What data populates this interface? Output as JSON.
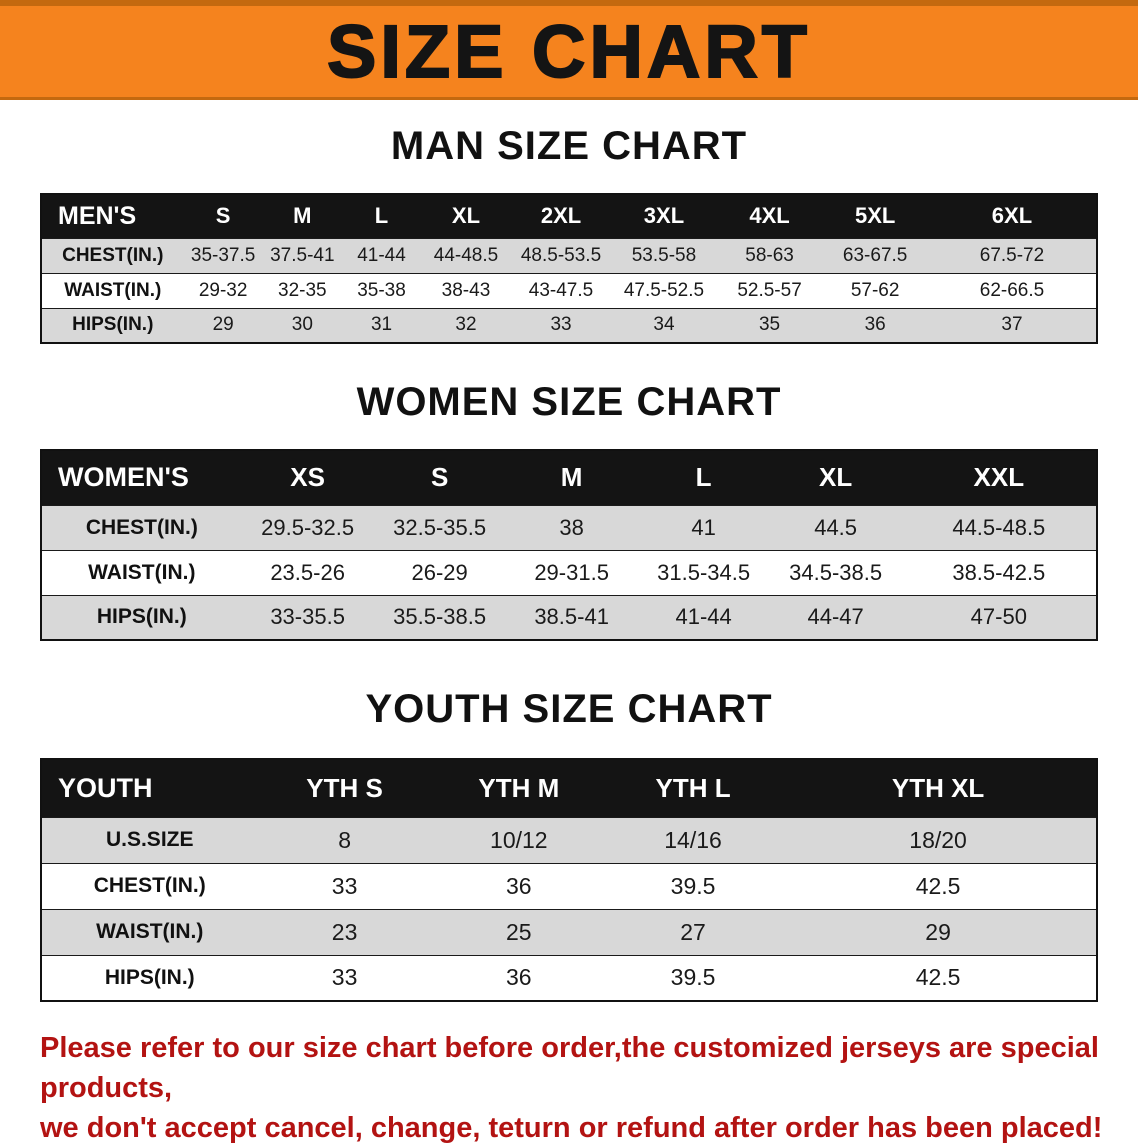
{
  "title": "SIZE CHART",
  "colors": {
    "banner_bg": "#f5831e",
    "banner_edge": "#c4690f",
    "table_header_bg": "#141414",
    "table_header_text": "#ffffff",
    "row_shade": "#d8d8d8",
    "row_plain": "#ffffff",
    "disclaimer_red": "#b31312"
  },
  "men": {
    "heading": "MAN SIZE CHART",
    "header": [
      "MEN'S",
      "S",
      "M",
      "L",
      "XL",
      "2XL",
      "3XL",
      "4XL",
      "5XL",
      "6XL"
    ],
    "rows": [
      {
        "label": "CHEST(IN.)",
        "v": [
          "35-37.5",
          "37.5-41",
          "41-44",
          "44-48.5",
          "48.5-53.5",
          "53.5-58",
          "58-63",
          "63-67.5",
          "67.5-72"
        ]
      },
      {
        "label": "WAIST(IN.)",
        "v": [
          "29-32",
          "32-35",
          "35-38",
          "38-43",
          "43-47.5",
          "47.5-52.5",
          "52.5-57",
          "57-62",
          "62-66.5"
        ]
      },
      {
        "label": "HIPS(IN.)",
        "v": [
          "29",
          "30",
          "31",
          "32",
          "33",
          "34",
          "35",
          "36",
          "37"
        ]
      }
    ]
  },
  "women": {
    "heading": "WOMEN SIZE CHART",
    "header": [
      "WOMEN'S",
      "XS",
      "S",
      "M",
      "L",
      "XL",
      "XXL"
    ],
    "rows": [
      {
        "label": "CHEST(IN.)",
        "v": [
          "29.5-32.5",
          "32.5-35.5",
          "38",
          "41",
          "44.5",
          "44.5-48.5"
        ]
      },
      {
        "label": "WAIST(IN.)",
        "v": [
          "23.5-26",
          "26-29",
          "29-31.5",
          "31.5-34.5",
          "34.5-38.5",
          "38.5-42.5"
        ]
      },
      {
        "label": "HIPS(IN.)",
        "v": [
          "33-35.5",
          "35.5-38.5",
          "38.5-41",
          "41-44",
          "44-47",
          "47-50"
        ]
      }
    ]
  },
  "youth": {
    "heading": "YOUTH SIZE CHART",
    "header": [
      "YOUTH",
      "YTH S",
      "YTH M",
      "YTH L",
      "YTH XL"
    ],
    "rows": [
      {
        "label": "U.S.SIZE",
        "v": [
          "8",
          "10/12",
          "14/16",
          "18/20"
        ]
      },
      {
        "label": "CHEST(IN.)",
        "v": [
          "33",
          "36",
          "39.5",
          "42.5"
        ]
      },
      {
        "label": "WAIST(IN.)",
        "v": [
          "23",
          "25",
          "27",
          "29"
        ]
      },
      {
        "label": "HIPS(IN.)",
        "v": [
          "33",
          "36",
          "39.5",
          "42.5"
        ]
      }
    ]
  },
  "disclaimer": {
    "line1": "Please refer to our size chart before order,the customized jerseys are special products,",
    "line2": "we don't accept cancel, change, teturn or refund after order has been placed!"
  }
}
